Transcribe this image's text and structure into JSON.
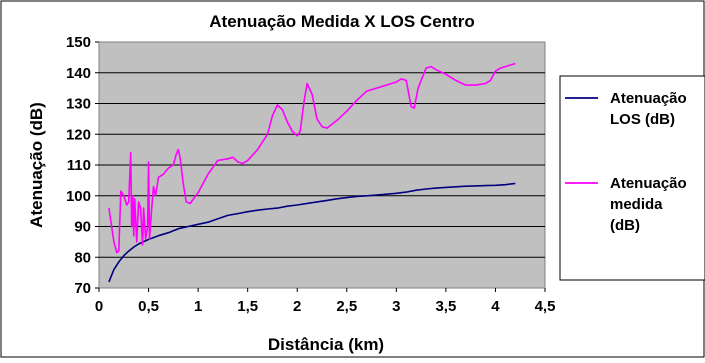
{
  "chart_data": {
    "type": "line",
    "title": "Atenuação Medida X LOS Centro",
    "xlabel": "Distância (km)",
    "ylabel": "Atenuação (dB)",
    "xlim": [
      0,
      4.5
    ],
    "ylim": [
      70,
      150
    ],
    "x_ticks": [
      "0",
      "0,5",
      "1",
      "1,5",
      "2",
      "2,5",
      "3",
      "3,5",
      "4",
      "4,5"
    ],
    "y_ticks": [
      "70",
      "80",
      "90",
      "100",
      "110",
      "120",
      "130",
      "140",
      "150"
    ],
    "grid": "horizontal",
    "plot_background": "#c0c0c0",
    "legend_position": "right",
    "series": [
      {
        "name": "Atenuação LOS (dB)",
        "legend_lines": [
          "Atenuação",
          "LOS (dB)"
        ],
        "color": "#000080",
        "points": [
          [
            0.1,
            72
          ],
          [
            0.15,
            76
          ],
          [
            0.2,
            78.5
          ],
          [
            0.25,
            80.5
          ],
          [
            0.3,
            82
          ],
          [
            0.35,
            83.3
          ],
          [
            0.4,
            84.3
          ],
          [
            0.5,
            85.8
          ],
          [
            0.6,
            87
          ],
          [
            0.7,
            88
          ],
          [
            0.8,
            89.3
          ],
          [
            0.9,
            90
          ],
          [
            1.0,
            90.7
          ],
          [
            1.1,
            91.4
          ],
          [
            1.2,
            92.5
          ],
          [
            1.3,
            93.6
          ],
          [
            1.4,
            94.2
          ],
          [
            1.5,
            94.8
          ],
          [
            1.6,
            95.3
          ],
          [
            1.7,
            95.7
          ],
          [
            1.8,
            96
          ],
          [
            1.9,
            96.6
          ],
          [
            2.0,
            97
          ],
          [
            2.1,
            97.5
          ],
          [
            2.2,
            98
          ],
          [
            2.3,
            98.5
          ],
          [
            2.4,
            99
          ],
          [
            2.5,
            99.4
          ],
          [
            2.6,
            99.8
          ],
          [
            2.7,
            100
          ],
          [
            2.8,
            100.2
          ],
          [
            2.9,
            100.5
          ],
          [
            3.0,
            100.8
          ],
          [
            3.1,
            101.2
          ],
          [
            3.2,
            101.8
          ],
          [
            3.3,
            102.2
          ],
          [
            3.4,
            102.5
          ],
          [
            3.5,
            102.7
          ],
          [
            3.6,
            102.9
          ],
          [
            3.7,
            103.1
          ],
          [
            3.8,
            103.2
          ],
          [
            3.9,
            103.3
          ],
          [
            4.0,
            103.4
          ],
          [
            4.1,
            103.6
          ],
          [
            4.2,
            104
          ]
        ]
      },
      {
        "name": "Atenuação medida (dB)",
        "legend_lines": [
          "Atenuação",
          "medida",
          "(dB)"
        ],
        "color": "#ff00ff",
        "points": [
          [
            0.1,
            96
          ],
          [
            0.15,
            85
          ],
          [
            0.18,
            81.5
          ],
          [
            0.2,
            82
          ],
          [
            0.22,
            101.5
          ],
          [
            0.25,
            100
          ],
          [
            0.28,
            97
          ],
          [
            0.3,
            98
          ],
          [
            0.32,
            114
          ],
          [
            0.33,
            90
          ],
          [
            0.34,
            100
          ],
          [
            0.35,
            87
          ],
          [
            0.36,
            99
          ],
          [
            0.38,
            85
          ],
          [
            0.4,
            98
          ],
          [
            0.42,
            96
          ],
          [
            0.44,
            84
          ],
          [
            0.45,
            96
          ],
          [
            0.47,
            86
          ],
          [
            0.49,
            90
          ],
          [
            0.5,
            111
          ],
          [
            0.51,
            86
          ],
          [
            0.53,
            95
          ],
          [
            0.55,
            103
          ],
          [
            0.57,
            100
          ],
          [
            0.6,
            106
          ],
          [
            0.65,
            107
          ],
          [
            0.7,
            109
          ],
          [
            0.75,
            110
          ],
          [
            0.78,
            113.5
          ],
          [
            0.8,
            115
          ],
          [
            0.82,
            112
          ],
          [
            0.85,
            104
          ],
          [
            0.88,
            98
          ],
          [
            0.92,
            97.5
          ],
          [
            1.0,
            101
          ],
          [
            1.1,
            107
          ],
          [
            1.2,
            111.5
          ],
          [
            1.3,
            112
          ],
          [
            1.35,
            112.5
          ],
          [
            1.4,
            111
          ],
          [
            1.45,
            110.5
          ],
          [
            1.5,
            111.5
          ],
          [
            1.6,
            115
          ],
          [
            1.7,
            120
          ],
          [
            1.75,
            126
          ],
          [
            1.8,
            129.5
          ],
          [
            1.85,
            128
          ],
          [
            1.9,
            124
          ],
          [
            1.95,
            121
          ],
          [
            2.0,
            119.5
          ],
          [
            2.03,
            121
          ],
          [
            2.07,
            131
          ],
          [
            2.1,
            136.5
          ],
          [
            2.15,
            133
          ],
          [
            2.2,
            125
          ],
          [
            2.25,
            122.5
          ],
          [
            2.3,
            122
          ],
          [
            2.4,
            124.5
          ],
          [
            2.5,
            127.5
          ],
          [
            2.6,
            131
          ],
          [
            2.7,
            134
          ],
          [
            2.8,
            135
          ],
          [
            2.9,
            136
          ],
          [
            3.0,
            137
          ],
          [
            3.05,
            138
          ],
          [
            3.1,
            137.5
          ],
          [
            3.15,
            129
          ],
          [
            3.18,
            128.5
          ],
          [
            3.22,
            135
          ],
          [
            3.3,
            141.5
          ],
          [
            3.35,
            142
          ],
          [
            3.4,
            141
          ],
          [
            3.5,
            139.5
          ],
          [
            3.6,
            137.5
          ],
          [
            3.7,
            136
          ],
          [
            3.8,
            136
          ],
          [
            3.9,
            136.5
          ],
          [
            3.95,
            137.5
          ],
          [
            4.0,
            140.5
          ],
          [
            4.05,
            141.5
          ],
          [
            4.1,
            142
          ],
          [
            4.2,
            143
          ]
        ]
      }
    ]
  }
}
